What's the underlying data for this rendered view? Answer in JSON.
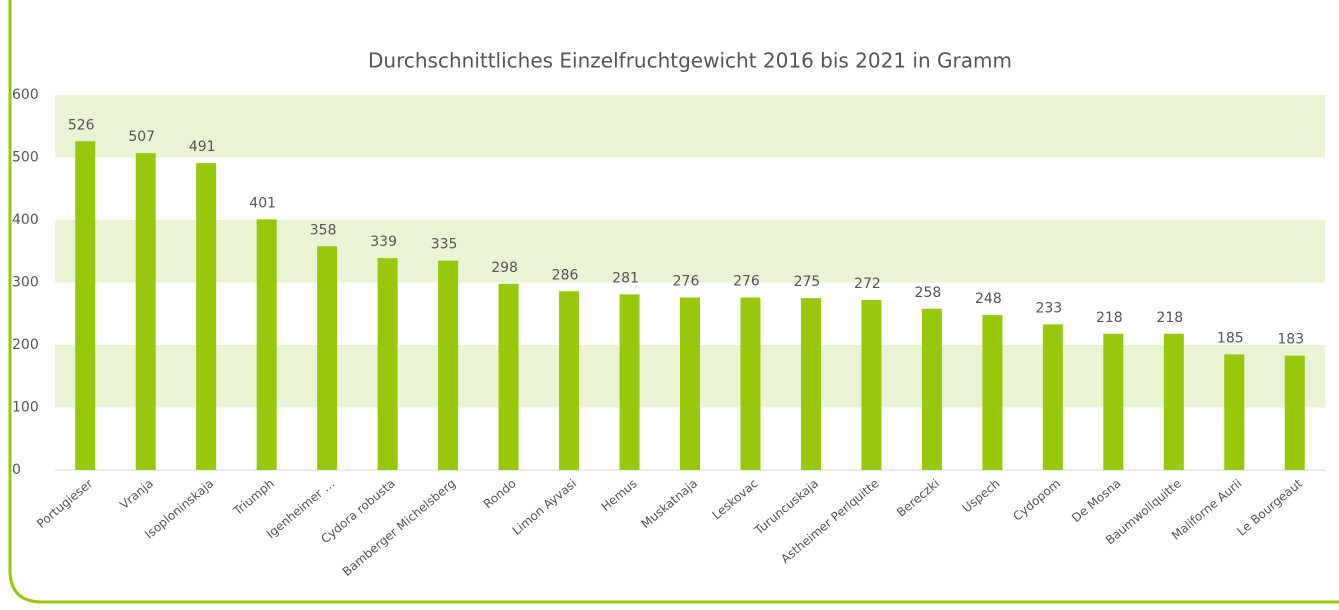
{
  "chart_data": {
    "type": "bar",
    "title": "Durchschnittliches Einzelfruchtgewicht 2016 bis 2021 in Gramm",
    "categories": [
      "Portugieser",
      "Vranja",
      "Isoploninskaja",
      "Triumph",
      "Igenheimer …",
      "Cydora robusta",
      "Bamberger Michelsberg",
      "Rondo",
      "Limon Ayvasi",
      "Hemus",
      "Muskatnaja",
      "Leskovac",
      "Turuncuskaja",
      "Astheimer Perlquitte",
      "Bereczki",
      "Uspech",
      "Cydopom",
      "De Mosna",
      "Baumwollquitte",
      "Maliforne Aurii",
      "Le Bourgeaut"
    ],
    "values": [
      526,
      507,
      491,
      401,
      358,
      339,
      335,
      298,
      286,
      281,
      276,
      276,
      275,
      272,
      258,
      248,
      233,
      218,
      218,
      185,
      183
    ],
    "color": "#97c80c",
    "ylim": [
      0,
      600
    ],
    "yticks": [
      0,
      100,
      200,
      300,
      400,
      500,
      600
    ],
    "alternate_bands": true,
    "band_color": "#eaf3d3"
  }
}
